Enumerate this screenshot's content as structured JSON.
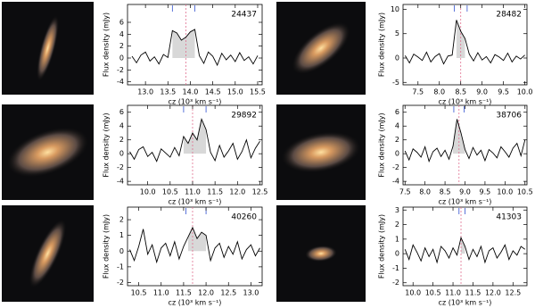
{
  "chart_data": [
    {
      "type": "line",
      "label": "24437",
      "xlabel": "cz (10³ km s⁻¹)",
      "ylabel": "Flux density (mJy)",
      "color": "#000000",
      "x": [
        12.7,
        12.8,
        12.9,
        13.0,
        13.1,
        13.2,
        13.3,
        13.4,
        13.5,
        13.6,
        13.7,
        13.8,
        13.9,
        14.0,
        14.1,
        14.2,
        14.3,
        14.4,
        14.5,
        14.6,
        14.7,
        14.8,
        14.9,
        15.0,
        15.1,
        15.2,
        15.3,
        15.4,
        15.5
      ],
      "values": [
        0.3,
        -0.8,
        0.5,
        1.0,
        -0.5,
        0.2,
        -1.0,
        0.6,
        0.1,
        4.6,
        4.2,
        3.0,
        3.5,
        4.4,
        4.8,
        0.4,
        -0.9,
        1.0,
        0.3,
        -1.2,
        0.8,
        -0.3,
        0.5,
        -0.6,
        0.9,
        -0.4,
        0.2,
        -1.0,
        0.4
      ],
      "xlim": [
        12.6,
        15.6
      ],
      "ylim": [
        -4.5,
        9
      ],
      "xticks": [
        {
          "value": 13,
          "label": "13.0"
        },
        13.5,
        {
          "value": 14,
          "label": "14.0"
        },
        14.5,
        {
          "value": 15,
          "label": "15.0"
        },
        15.5
      ],
      "yticks": [
        -4,
        -2,
        0,
        2,
        4,
        6
      ],
      "shade": [
        13.6,
        14.15
      ],
      "center": 13.9,
      "edges": [
        13.6,
        14.1
      ]
    },
    {
      "type": "line",
      "label": "28482",
      "xlabel": "cz (10³ km s⁻¹)",
      "ylabel": "Flux density (mJy)",
      "color": "#000000",
      "x": [
        7.2,
        7.3,
        7.4,
        7.5,
        7.6,
        7.7,
        7.8,
        7.9,
        8.0,
        8.1,
        8.2,
        8.3,
        8.4,
        8.5,
        8.6,
        8.7,
        8.8,
        8.9,
        9.0,
        9.1,
        9.2,
        9.3,
        9.4,
        9.5,
        9.6,
        9.7,
        9.8,
        9.9,
        10.0
      ],
      "values": [
        0.5,
        -1.0,
        0.8,
        0.2,
        -0.5,
        1.2,
        -0.8,
        0.3,
        0.9,
        -1.2,
        0.4,
        0.6,
        7.8,
        5.5,
        4.0,
        0.8,
        -0.6,
        1.1,
        -0.4,
        0.3,
        -1.0,
        0.7,
        0.2,
        -0.5,
        1.0,
        -0.8,
        0.4,
        -0.2,
        0.6
      ],
      "xlim": [
        7.15,
        10.05
      ],
      "ylim": [
        -5.5,
        11
      ],
      "xticks": [
        7.5,
        {
          "value": 8,
          "label": "8.0"
        },
        8.5,
        {
          "value": 9,
          "label": "9.0"
        },
        9.5,
        {
          "value": 10,
          "label": "10.0"
        }
      ],
      "yticks": [
        -5,
        0,
        5,
        10
      ],
      "shade": [
        8.35,
        8.65
      ],
      "center": 8.5,
      "edges": [
        8.35,
        8.65
      ]
    },
    {
      "type": "line",
      "label": "29892",
      "xlabel": "cz (10³ km s⁻¹)",
      "ylabel": "Flux density (mJy)",
      "color": "#000000",
      "x": [
        9.6,
        9.7,
        9.8,
        9.9,
        10.0,
        10.1,
        10.2,
        10.3,
        10.4,
        10.5,
        10.6,
        10.7,
        10.8,
        10.9,
        11.0,
        11.1,
        11.2,
        11.3,
        11.4,
        11.5,
        11.6,
        11.7,
        11.8,
        11.9,
        12.0,
        12.1,
        12.2,
        12.3,
        12.4,
        12.5
      ],
      "values": [
        0.3,
        -0.8,
        0.6,
        1.0,
        -0.4,
        0.2,
        -1.1,
        0.7,
        0.1,
        -0.5,
        0.9,
        -0.3,
        2.5,
        1.5,
        3.0,
        2.0,
        5.0,
        3.5,
        0.2,
        -1.0,
        1.2,
        -0.5,
        0.4,
        1.5,
        -0.8,
        0.3,
        2.0,
        -0.6,
        0.8,
        1.8
      ],
      "xlim": [
        9.55,
        12.55
      ],
      "ylim": [
        -4.5,
        7
      ],
      "xticks": [
        {
          "value": 10,
          "label": "10.0"
        },
        10.5,
        {
          "value": 11,
          "label": "11.0"
        },
        11.5,
        {
          "value": 12,
          "label": "12.0"
        },
        12.5
      ],
      "yticks": [
        -4,
        -2,
        0,
        2,
        4,
        6
      ],
      "shade": [
        10.75,
        11.35
      ],
      "center": 11.0,
      "edges": [
        10.8,
        11.3
      ]
    },
    {
      "type": "line",
      "label": "38706",
      "xlabel": "cz (10³ km s⁻¹)",
      "ylabel": "Flux density (mJy)",
      "color": "#000000",
      "x": [
        7.5,
        7.6,
        7.7,
        7.8,
        7.9,
        8.0,
        8.1,
        8.2,
        8.3,
        8.4,
        8.5,
        8.6,
        8.7,
        8.8,
        8.9,
        9.0,
        9.1,
        9.2,
        9.3,
        9.4,
        9.5,
        9.6,
        9.7,
        9.8,
        9.9,
        10.0,
        10.1,
        10.2,
        10.3,
        10.4,
        10.5
      ],
      "values": [
        0.4,
        -0.9,
        0.7,
        0.2,
        -0.5,
        1.0,
        -1.1,
        0.3,
        0.8,
        -0.4,
        0.5,
        -0.8,
        1.1,
        5.0,
        3.0,
        0.6,
        -0.7,
        0.9,
        -0.2,
        0.5,
        -1.0,
        0.6,
        0.1,
        -0.6,
        1.0,
        0.3,
        -0.5,
        0.8,
        1.5,
        -0.3,
        2.0
      ],
      "xlim": [
        7.45,
        10.55
      ],
      "ylim": [
        -4.5,
        7
      ],
      "xticks": [
        7.5,
        {
          "value": 8,
          "label": "8.0"
        },
        8.5,
        {
          "value": 9,
          "label": "9.0"
        },
        9.5,
        {
          "value": 10,
          "label": "10.0"
        },
        10.5
      ],
      "yticks": [
        -4,
        -2,
        0,
        2,
        4,
        6
      ],
      "shade": [
        8.7,
        9.0
      ],
      "center": 8.85,
      "edges": [
        8.72,
        8.98
      ]
    },
    {
      "type": "line",
      "label": "40260",
      "xlabel": "cz (10³ km s⁻¹)",
      "ylabel": "Flux density (mJy)",
      "color": "#000000",
      "x": [
        10.3,
        10.4,
        10.5,
        10.6,
        10.7,
        10.8,
        10.9,
        11.0,
        11.1,
        11.2,
        11.3,
        11.4,
        11.5,
        11.6,
        11.7,
        11.8,
        11.9,
        12.0,
        12.1,
        12.2,
        12.3,
        12.4,
        12.5,
        12.6,
        12.7,
        12.8,
        12.9,
        13.0,
        13.1,
        13.2
      ],
      "values": [
        0.1,
        -0.6,
        0.3,
        1.4,
        -0.2,
        0.4,
        -0.7,
        0.2,
        0.5,
        -0.3,
        0.6,
        -0.5,
        0.3,
        0.9,
        1.5,
        0.8,
        1.2,
        1.0,
        -0.6,
        0.2,
        0.5,
        -0.4,
        0.3,
        -0.2,
        0.6,
        -0.5,
        0.1,
        0.4,
        -0.3,
        0.2
      ],
      "xlim": [
        10.25,
        13.25
      ],
      "ylim": [
        -2.2,
        2.8
      ],
      "xticks": [
        10.5,
        {
          "value": 11,
          "label": "11.0"
        },
        11.5,
        {
          "value": 12,
          "label": "12.0"
        },
        12.5,
        {
          "value": 13,
          "label": "13.0"
        }
      ],
      "yticks": [
        -2,
        -1,
        0,
        1,
        2
      ],
      "shade": [
        11.55,
        12.05
      ],
      "center": 11.7,
      "edges": [
        11.55,
        12.0
      ]
    },
    {
      "type": "line",
      "label": "41303",
      "xlabel": "cz (10³ km s⁻¹)",
      "ylabel": "Flux density (mJy)",
      "color": "#000000",
      "x": [
        9.8,
        9.9,
        10.0,
        10.1,
        10.2,
        10.3,
        10.4,
        10.5,
        10.6,
        10.7,
        10.8,
        10.9,
        11.0,
        11.1,
        11.2,
        11.3,
        11.4,
        11.5,
        11.6,
        11.7,
        11.8,
        11.9,
        12.0,
        12.1,
        12.2,
        12.3,
        12.4,
        12.5,
        12.6,
        12.7,
        12.8
      ],
      "values": [
        0.3,
        -0.4,
        0.6,
        0.1,
        -0.5,
        0.4,
        -0.2,
        0.3,
        -0.6,
        0.5,
        0.2,
        -0.3,
        0.4,
        -0.1,
        1.1,
        0.5,
        -0.4,
        0.3,
        -0.2,
        0.5,
        -0.6,
        0.2,
        0.4,
        -0.3,
        0.1,
        0.6,
        -0.4,
        0.2,
        -0.1,
        0.5,
        0.3
      ],
      "xlim": [
        9.75,
        12.85
      ],
      "ylim": [
        -2.2,
        3.2
      ],
      "xticks": [
        {
          "value": 10,
          "label": "10.0"
        },
        10.5,
        {
          "value": 11,
          "label": "11.0"
        },
        11.5,
        {
          "value": 12,
          "label": "12.0"
        },
        12.5
      ],
      "yticks": [
        -2,
        -1,
        0,
        1,
        2,
        3
      ],
      "shade": [
        11.15,
        11.32
      ],
      "center": 11.2,
      "edges": [
        11.15,
        11.3
      ]
    }
  ]
}
